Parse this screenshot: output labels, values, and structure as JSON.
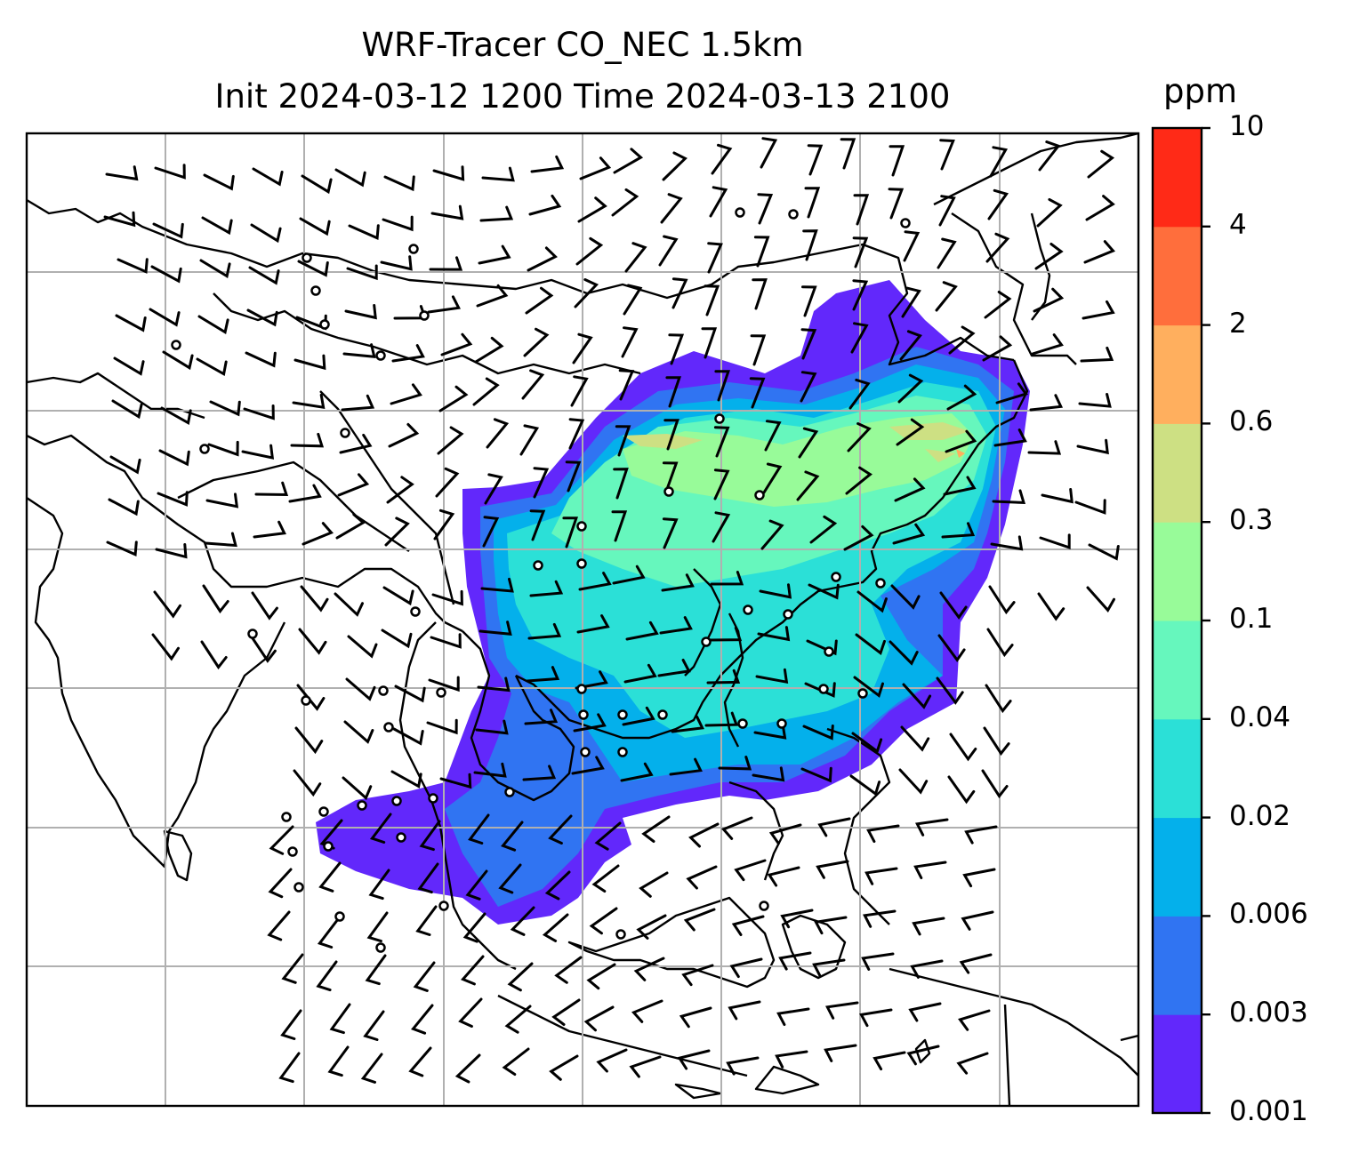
{
  "title": {
    "line1": "WRF-Tracer CO_NEC 1.5km",
    "line2": "Init 2024-03-12 1200 Time 2024-03-13 2100"
  },
  "colorbar": {
    "unit": "ppm",
    "levels": [
      "0.001",
      "0.003",
      "0.006",
      "0.02",
      "0.04",
      "0.1",
      "0.3",
      "0.6",
      "2",
      "4",
      "10"
    ],
    "colors": [
      "#6228fb",
      "#3074f2",
      "#04b0eb",
      "#2be0d7",
      "#66f7bd",
      "#98fb99",
      "#cde083",
      "#ffaf5e",
      "#ff6e3c",
      "#ff2a17"
    ]
  },
  "map": {
    "background": "#ffffff",
    "gridline_color": "#b0b0b0",
    "coastline_color": "#000000",
    "wind_barb_color": "#000000"
  }
}
